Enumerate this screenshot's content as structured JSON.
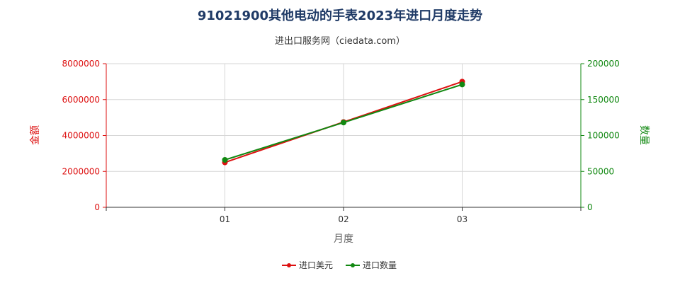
{
  "chart_data": {
    "type": "line",
    "title": "91021900其他电动的手表2023年进口月度走势",
    "subtitle": "进出口服务网（ciedata.com）",
    "xlabel": "月度",
    "ylabel_left": "金额",
    "ylabel_right": "数量",
    "categories": [
      "01",
      "02",
      "03"
    ],
    "y_left": {
      "min": 0,
      "max": 8000000,
      "ticks": [
        "0",
        "2000000",
        "4000000",
        "6000000",
        "8000000"
      ]
    },
    "y_right": {
      "min": 0,
      "max": 200000,
      "ticks": [
        "0",
        "50000",
        "100000",
        "150000",
        "200000"
      ]
    },
    "grid": true,
    "legend_position": "bottom",
    "series": [
      {
        "name": "进口美元",
        "axis": "left",
        "color": "#dd1111",
        "values": [
          2500000,
          4750000,
          7000000
        ]
      },
      {
        "name": "进口数量",
        "axis": "right",
        "color": "#118811",
        "values": [
          66000,
          118000,
          171000
        ]
      }
    ]
  }
}
